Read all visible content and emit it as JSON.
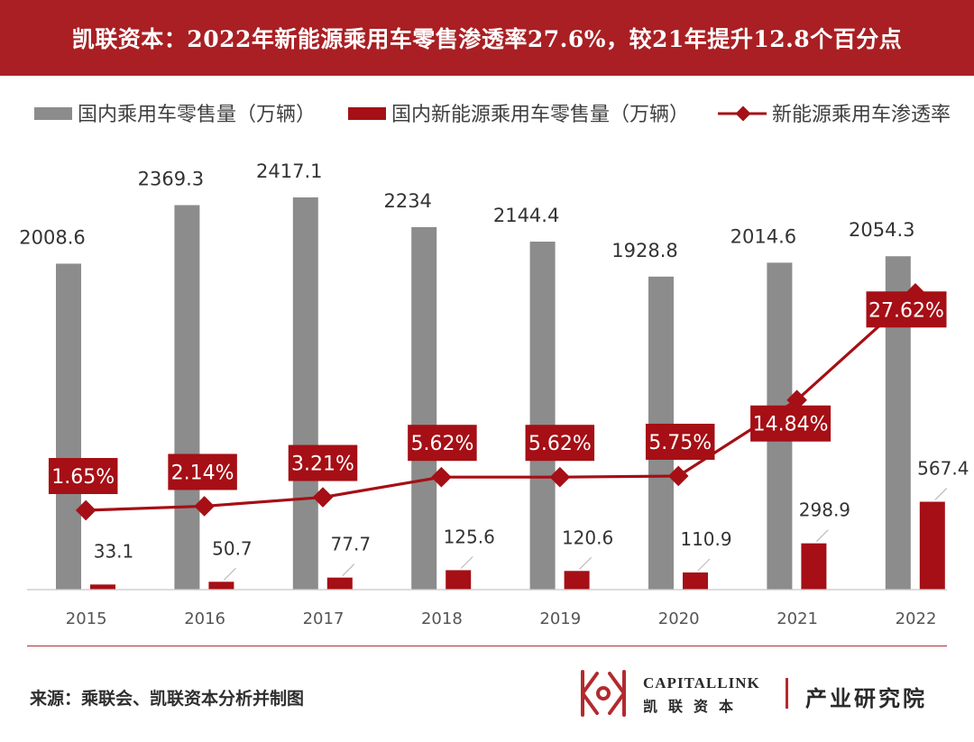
{
  "header": {
    "title": "凯联资本：2022年新能源乘用车零售渗透率27.6%，较21年提升12.8个百分点"
  },
  "chart_data": {
    "type": "bar",
    "categories": [
      "2015",
      "2016",
      "2017",
      "2018",
      "2019",
      "2020",
      "2021",
      "2022"
    ],
    "series": [
      {
        "name": "国内乘用车零售量（万辆）",
        "kind": "bar",
        "color": "#8c8c8c",
        "values": [
          2008.6,
          2369.3,
          2417.1,
          2234,
          2144.4,
          1928.8,
          2014.6,
          2054.3
        ],
        "labels": [
          "2008.6",
          "2369.3",
          "2417.1",
          "2234",
          "2144.4",
          "1928.8",
          "2014.6",
          "2054.3"
        ]
      },
      {
        "name": "国内新能源乘用车零售量（万辆）",
        "kind": "bar",
        "color": "#a50f15",
        "values": [
          33.1,
          50.7,
          77.7,
          125.6,
          120.6,
          110.9,
          298.9,
          567.4
        ],
        "labels": [
          "33.1",
          "50.7",
          "77.7",
          "125.6",
          "120.6",
          "110.9",
          "298.9",
          "567.4"
        ]
      },
      {
        "name": "新能源乘用车渗透率",
        "kind": "line",
        "axis": "secondary",
        "color": "#a50f15",
        "values": [
          1.65,
          2.14,
          3.21,
          5.62,
          5.62,
          5.75,
          14.84,
          27.62
        ],
        "labels": [
          "1.65%",
          "2.14%",
          "3.21%",
          "5.62%",
          "5.62%",
          "5.75%",
          "14.84%",
          "27.62%"
        ]
      }
    ],
    "legend_position": "top",
    "grid": false
  },
  "footer": {
    "source": "来源：乘联会、凯联资本分析并制图",
    "brand_en": "CAPITALLINK",
    "brand_cn": "凯联资本",
    "brand_dept": "产业研究院"
  },
  "colors": {
    "brand_red": "#a91f23",
    "bar_gray": "#8c8c8c",
    "bar_red": "#a50f15"
  }
}
